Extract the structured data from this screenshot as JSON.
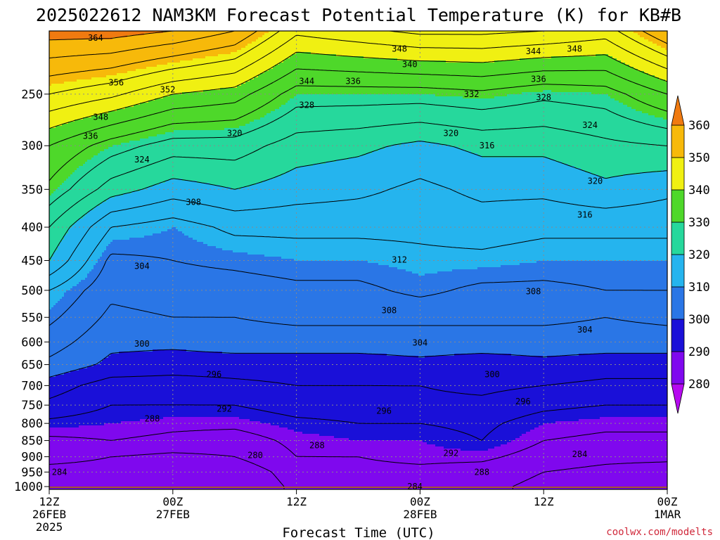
{
  "title": "2025022612 NAM3KM Forecast Potential Temperature (K) for KB#B",
  "credit": "coolwx.com/modelts",
  "colors": {
    "ground": "#a3522d",
    "gridline": "#8a8a8a",
    "contour": "#000000",
    "credit": "#d0283a"
  },
  "chart_data": {
    "type": "heatmap",
    "subtype": "time-height filled contour",
    "title": "2025022612 NAM3KM Forecast Potential Temperature (K) for KB#B",
    "xlabel": "Forecast Time (UTC)",
    "ylabel": "",
    "x_hours": [
      0,
      6,
      12,
      18,
      24,
      30,
      36,
      42,
      48,
      54,
      60
    ],
    "x_ticks": [
      {
        "hour": 0,
        "lines": [
          "12Z",
          "26FEB",
          "2025"
        ]
      },
      {
        "hour": 12,
        "lines": [
          "00Z",
          "27FEB"
        ]
      },
      {
        "hour": 24,
        "lines": [
          "12Z"
        ]
      },
      {
        "hour": 36,
        "lines": [
          "00Z",
          "28FEB"
        ]
      },
      {
        "hour": 48,
        "lines": [
          "12Z"
        ]
      },
      {
        "hour": 60,
        "lines": [
          "00Z",
          "1MAR"
        ]
      }
    ],
    "y_scale": "log-pressure (hPa), inverted",
    "ylim": [
      1000,
      200
    ],
    "y_ticks": [
      250,
      300,
      350,
      400,
      450,
      500,
      550,
      600,
      650,
      700,
      750,
      800,
      850,
      900,
      950,
      1000
    ],
    "pressure_levels": [
      1000,
      950,
      900,
      850,
      800,
      750,
      700,
      650,
      600,
      550,
      500,
      450,
      400,
      350,
      300,
      250,
      200
    ],
    "grid": true,
    "ground_level_hpa": 1000,
    "theta_K": [
      [
        280,
        283,
        285,
        287,
        291,
        295,
        298,
        303,
        306,
        309,
        312,
        320,
        324,
        331,
        336,
        348,
        362
      ],
      [
        282,
        283,
        284,
        288,
        290,
        292,
        294,
        299,
        301,
        303,
        305,
        307,
        312,
        322,
        330,
        345,
        362
      ],
      [
        281,
        282,
        283,
        287,
        289,
        292,
        294,
        298,
        301,
        304,
        306,
        308,
        310,
        318,
        326,
        340,
        360
      ],
      [
        280,
        281,
        284,
        286,
        289,
        292,
        295,
        298,
        302,
        304,
        306,
        309,
        313,
        320,
        326,
        338,
        356
      ],
      [
        285,
        286,
        288,
        289,
        291,
        294,
        296,
        298,
        302,
        305,
        307,
        310,
        313,
        318,
        322,
        330,
        345
      ],
      [
        285,
        287,
        288,
        290,
        292,
        294,
        296,
        298,
        302,
        305,
        307,
        310,
        313,
        317,
        321,
        330,
        347
      ],
      [
        285,
        287,
        289,
        290,
        292,
        295,
        296,
        299,
        302,
        305,
        309,
        311,
        313,
        315,
        319,
        330,
        349
      ],
      [
        285,
        286,
        289,
        292,
        293,
        295,
        297,
        298,
        302,
        305,
        307,
        311,
        314,
        317,
        321,
        331,
        349
      ],
      [
        283,
        284,
        286,
        288,
        290,
        293,
        296,
        299,
        302,
        305,
        307,
        310,
        313,
        317,
        321,
        329,
        348
      ],
      [
        281,
        283,
        285,
        287,
        289,
        292,
        295,
        298,
        302,
        304,
        308,
        310,
        313,
        319,
        323,
        330,
        346
      ],
      [
        280,
        282,
        285,
        287,
        289,
        292,
        295,
        298,
        302,
        305,
        308,
        310,
        313,
        317,
        324,
        336,
        356
      ]
    ],
    "levels": [
      280,
      284,
      288,
      292,
      296,
      300,
      304,
      308,
      312,
      316,
      320,
      324,
      328,
      332,
      336,
      340,
      344,
      348,
      352,
      356,
      360,
      364
    ],
    "colorbar": {
      "ticks": [
        280,
        290,
        300,
        310,
        320,
        330,
        340,
        350,
        360
      ],
      "bins": [
        {
          "min": 270,
          "max": 280,
          "color": "#b60af0"
        },
        {
          "min": 280,
          "max": 290,
          "color": "#7f08ee"
        },
        {
          "min": 290,
          "max": 300,
          "color": "#1a10d8"
        },
        {
          "min": 300,
          "max": 310,
          "color": "#2a76e6"
        },
        {
          "min": 310,
          "max": 320,
          "color": "#25b4ee"
        },
        {
          "min": 320,
          "max": 330,
          "color": "#26d89c"
        },
        {
          "min": 330,
          "max": 340,
          "color": "#4ed82a"
        },
        {
          "min": 340,
          "max": 350,
          "color": "#f0f012"
        },
        {
          "min": 350,
          "max": 360,
          "color": "#f7b90a"
        },
        {
          "min": 360,
          "max": 370,
          "color": "#f07a10"
        }
      ]
    },
    "contour_labels": [
      {
        "text": "364",
        "hour": 4.5,
        "p": 205
      },
      {
        "text": "356",
        "hour": 6.5,
        "p": 240
      },
      {
        "text": "352",
        "hour": 11.5,
        "p": 246
      },
      {
        "text": "348",
        "hour": 5.0,
        "p": 271
      },
      {
        "text": "336",
        "hour": 4.0,
        "p": 290
      },
      {
        "text": "324",
        "hour": 9.0,
        "p": 315
      },
      {
        "text": "320",
        "hour": 18.0,
        "p": 287
      },
      {
        "text": "344",
        "hour": 25.0,
        "p": 239
      },
      {
        "text": "336",
        "hour": 29.5,
        "p": 239
      },
      {
        "text": "328",
        "hour": 25.0,
        "p": 260
      },
      {
        "text": "348",
        "hour": 34.0,
        "p": 213
      },
      {
        "text": "340",
        "hour": 35.0,
        "p": 225
      },
      {
        "text": "332",
        "hour": 41.0,
        "p": 250
      },
      {
        "text": "320",
        "hour": 39.0,
        "p": 287
      },
      {
        "text": "316",
        "hour": 42.5,
        "p": 300
      },
      {
        "text": "344",
        "hour": 47.0,
        "p": 215
      },
      {
        "text": "348",
        "hour": 51.0,
        "p": 213
      },
      {
        "text": "336",
        "hour": 47.5,
        "p": 237
      },
      {
        "text": "328",
        "hour": 48.0,
        "p": 253
      },
      {
        "text": "324",
        "hour": 52.5,
        "p": 279
      },
      {
        "text": "320",
        "hour": 53.0,
        "p": 340
      },
      {
        "text": "316",
        "hour": 52.0,
        "p": 383
      },
      {
        "text": "308",
        "hour": 14.0,
        "p": 366
      },
      {
        "text": "304",
        "hour": 9.0,
        "p": 459
      },
      {
        "text": "312",
        "hour": 34.0,
        "p": 449
      },
      {
        "text": "308",
        "hour": 33.0,
        "p": 537
      },
      {
        "text": "308",
        "hour": 47.0,
        "p": 502
      },
      {
        "text": "304",
        "hour": 36.0,
        "p": 602
      },
      {
        "text": "304",
        "hour": 52.0,
        "p": 575
      },
      {
        "text": "300",
        "hour": 9.0,
        "p": 604
      },
      {
        "text": "300",
        "hour": 43.0,
        "p": 673
      },
      {
        "text": "296",
        "hour": 16.0,
        "p": 673
      },
      {
        "text": "296",
        "hour": 32.5,
        "p": 766
      },
      {
        "text": "296",
        "hour": 46.0,
        "p": 740
      },
      {
        "text": "292",
        "hour": 17.0,
        "p": 760
      },
      {
        "text": "292",
        "hour": 39.0,
        "p": 889
      },
      {
        "text": "288",
        "hour": 10.0,
        "p": 787
      },
      {
        "text": "288",
        "hour": 26.0,
        "p": 865
      },
      {
        "text": "288",
        "hour": 42.0,
        "p": 950
      },
      {
        "text": "284",
        "hour": 1.0,
        "p": 950
      },
      {
        "text": "284",
        "hour": 35.5,
        "p": 1000
      },
      {
        "text": "284",
        "hour": 51.5,
        "p": 892
      },
      {
        "text": "280",
        "hour": 20.0,
        "p": 895
      }
    ]
  }
}
